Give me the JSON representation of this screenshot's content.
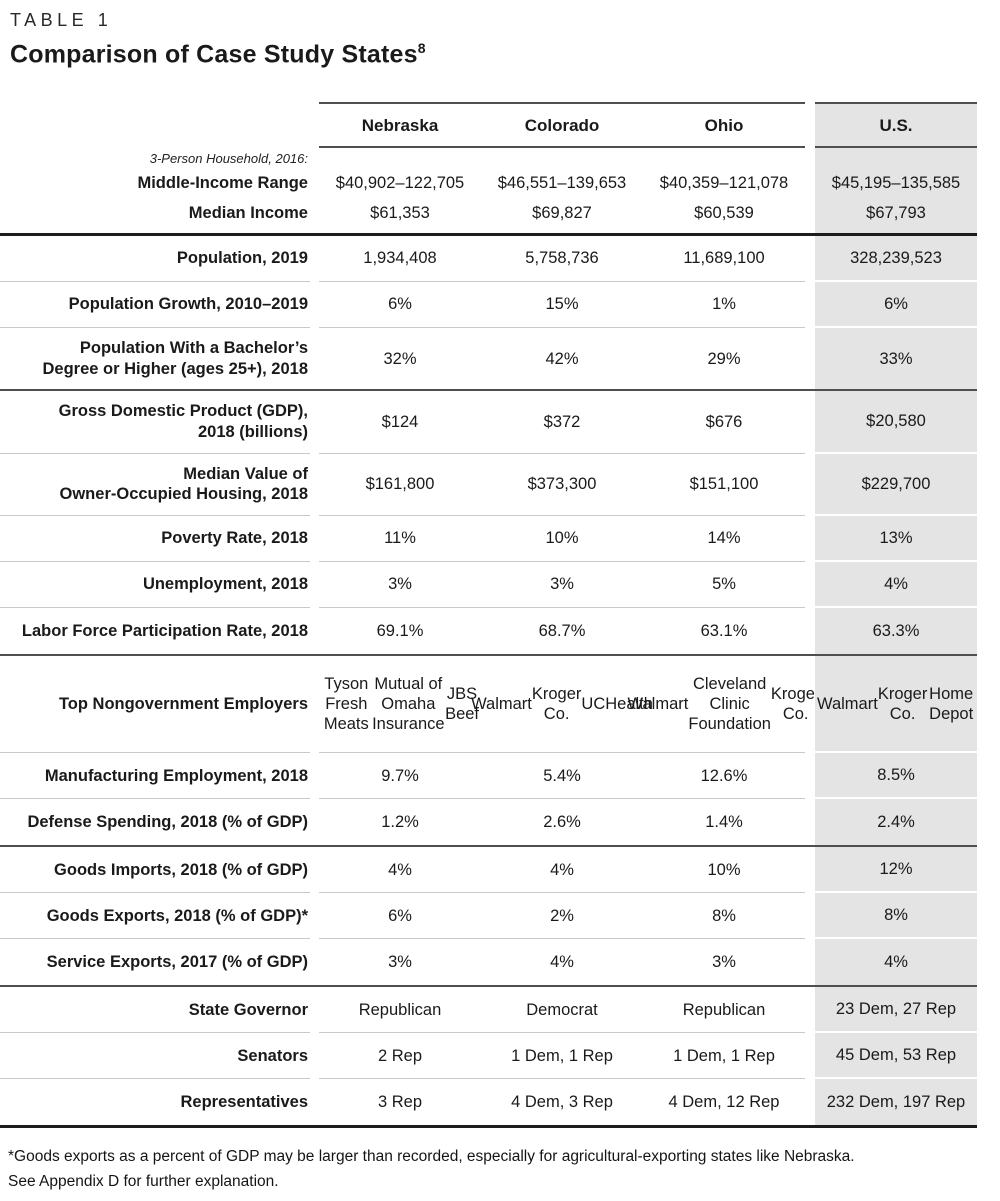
{
  "header": {
    "eyebrow": "TABLE 1",
    "title": "Comparison of Case Study States",
    "title_note_ref": "8"
  },
  "table": {
    "columns": [
      "Nebraska",
      "Colorado",
      "Ohio",
      "U.S."
    ],
    "rows": [
      {
        "pre_label": "3-Person Household, 2016:",
        "label": "Middle-Income Range",
        "values": [
          "$40,902–122,705",
          "$46,551–139,653",
          "$40,359–121,078",
          "$45,195–135,585"
        ],
        "variant": "income-head",
        "divider_after": "none"
      },
      {
        "label": "Median Income",
        "values": [
          "$61,353",
          "$69,827",
          "$60,539",
          "$67,793"
        ],
        "variant": "income-sub",
        "divider_after": "heavy"
      },
      {
        "label": "Population, 2019",
        "values": [
          "1,934,408",
          "5,758,736",
          "11,689,100",
          "328,239,523"
        ],
        "divider_after": "light"
      },
      {
        "label": "Population Growth, 2010–2019",
        "values": [
          "6%",
          "15%",
          "1%",
          "6%"
        ],
        "divider_after": "light"
      },
      {
        "label": "Population With a Bachelor’s\nDegree or Higher (ages 25+), 2018",
        "values": [
          "32%",
          "42%",
          "29%",
          "33%"
        ],
        "divider_after": "dark"
      },
      {
        "label": "Gross Domestic Product (GDP),\n2018 (billions)",
        "values": [
          "$124",
          "$372",
          "$676",
          "$20,580"
        ],
        "divider_after": "light"
      },
      {
        "label": "Median Value of\nOwner-Occupied Housing, 2018",
        "values": [
          "$161,800",
          "$373,300",
          "$151,100",
          "$229,700"
        ],
        "divider_after": "light"
      },
      {
        "label": "Poverty Rate, 2018",
        "values": [
          "11%",
          "10%",
          "14%",
          "13%"
        ],
        "divider_after": "light"
      },
      {
        "label": "Unemployment, 2018",
        "values": [
          "3%",
          "3%",
          "5%",
          "4%"
        ],
        "divider_after": "light"
      },
      {
        "label": "Labor Force Participation Rate, 2018",
        "values": [
          "69.1%",
          "68.7%",
          "63.1%",
          "63.3%"
        ],
        "divider_after": "dark"
      },
      {
        "label": "Top Nongovernment Employers",
        "values": [
          [
            "Tyson Fresh Meats",
            "Mutual of Omaha Insurance",
            "JBS Beef"
          ],
          [
            "Walmart",
            "Kroger Co.",
            "UCHealth"
          ],
          [
            "Walmart",
            "Cleveland Clinic Foundation",
            "Kroger Co."
          ],
          [
            "Walmart",
            "Kroger Co.",
            "Home Depot"
          ]
        ],
        "divider_after": "light"
      },
      {
        "label": "Manufacturing Employment, 2018",
        "values": [
          "9.7%",
          "5.4%",
          "12.6%",
          "8.5%"
        ],
        "divider_after": "light"
      },
      {
        "label": "Defense Spending, 2018 (% of GDP)",
        "values": [
          "1.2%",
          "2.6%",
          "1.4%",
          "2.4%"
        ],
        "divider_after": "dark"
      },
      {
        "label": "Goods Imports, 2018 (% of GDP)",
        "values": [
          "4%",
          "4%",
          "10%",
          "12%"
        ],
        "divider_after": "light"
      },
      {
        "label": "Goods Exports, 2018 (% of GDP)*",
        "values": [
          "6%",
          "2%",
          "8%",
          "8%"
        ],
        "divider_after": "light"
      },
      {
        "label": "Service Exports, 2017 (% of GDP)",
        "values": [
          "3%",
          "4%",
          "3%",
          "4%"
        ],
        "divider_after": "dark"
      },
      {
        "label": "State Governor",
        "values": [
          "Republican",
          "Democrat",
          "Republican",
          "23 Dem, 27 Rep"
        ],
        "divider_after": "light"
      },
      {
        "label": "Senators",
        "values": [
          "2 Rep",
          "1 Dem, 1 Rep",
          "1 Dem, 1 Rep",
          "45 Dem, 53 Rep"
        ],
        "divider_after": "light"
      },
      {
        "label": "Representatives",
        "values": [
          "3 Rep",
          "4 Dem, 3 Rep",
          "4 Dem, 12 Rep",
          "232 Dem, 197 Rep"
        ],
        "divider_after": "heavy"
      }
    ]
  },
  "footnote": {
    "line1": "*Goods exports as a percent of GDP may be larger than recorded, especially for agricultural-exporting states like Nebraska.",
    "line2": "See Appendix D for further explanation."
  },
  "colors": {
    "us_column_bg": "#e4e4e4",
    "heavy_rule": "#1c1c1c",
    "section_rule": "#4f4f4f",
    "row_rule": "#c9c9c9",
    "text": "#1a1a1a"
  }
}
